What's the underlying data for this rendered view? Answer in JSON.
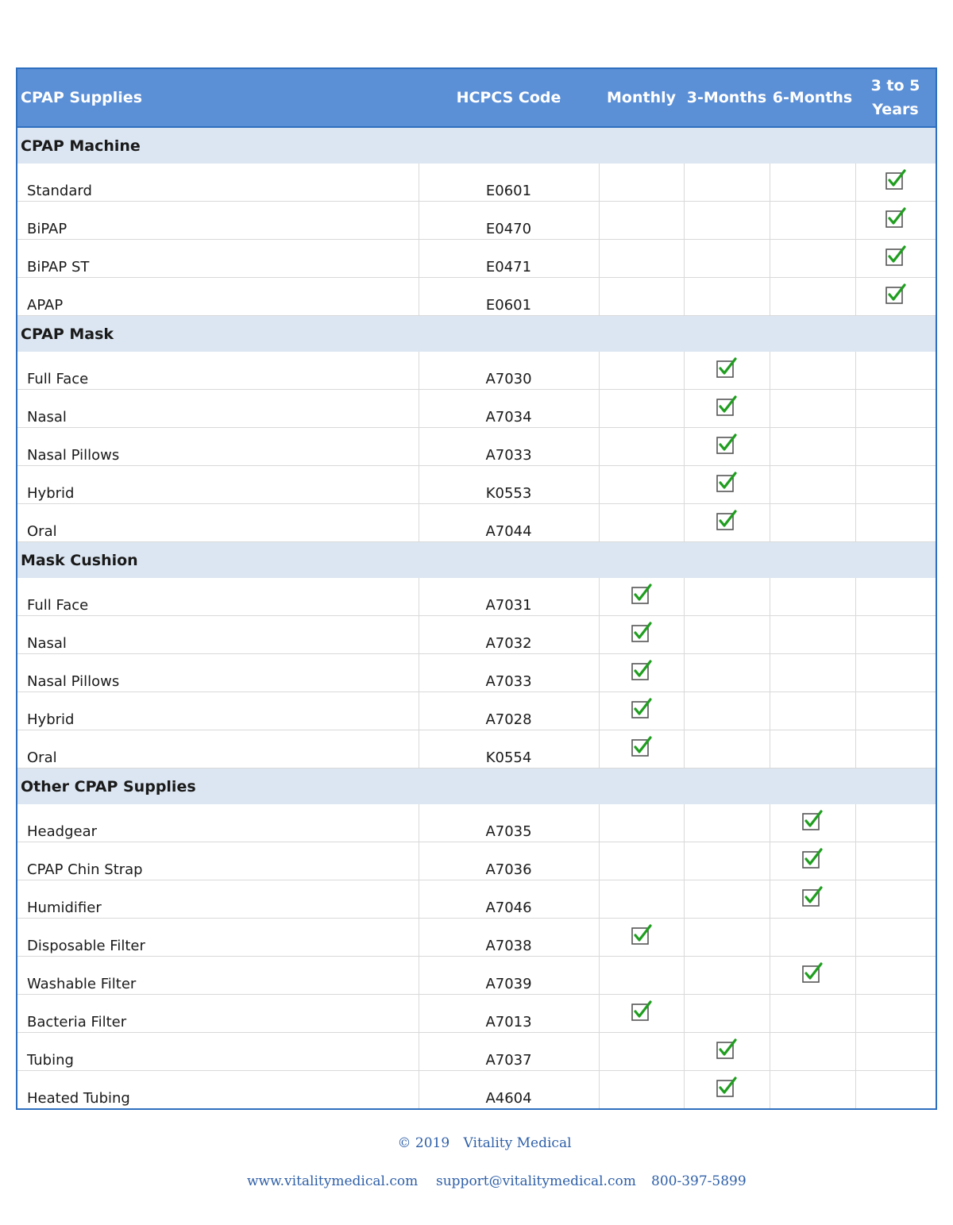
{
  "table": {
    "headers": {
      "supplies": "CPAP Supplies",
      "hcpcs": "HCPCS Code",
      "monthly": "Monthly",
      "three_months": "3-Months",
      "six_months": "6-Months",
      "years_line1": "3 to 5",
      "years_line2": "Years"
    },
    "check_color": "#1f9e1f",
    "sections": [
      {
        "title": "CPAP Machine",
        "rows": [
          {
            "name": "Standard",
            "code": "E0601",
            "freq": "years"
          },
          {
            "name": "BiPAP",
            "code": "E0470",
            "freq": "years"
          },
          {
            "name": "BiPAP ST",
            "code": "E0471",
            "freq": "years"
          },
          {
            "name": "APAP",
            "code": "E0601",
            "freq": "years"
          }
        ]
      },
      {
        "title": "CPAP Mask",
        "rows": [
          {
            "name": "Full Face",
            "code": "A7030",
            "freq": "three_months"
          },
          {
            "name": "Nasal",
            "code": "A7034",
            "freq": "three_months"
          },
          {
            "name": "Nasal Pillows",
            "code": "A7033",
            "freq": "three_months"
          },
          {
            "name": "Hybrid",
            "code": "K0553",
            "freq": "three_months"
          },
          {
            "name": "Oral",
            "code": "A7044",
            "freq": "three_months"
          }
        ]
      },
      {
        "title": "Mask Cushion",
        "rows": [
          {
            "name": "Full Face",
            "code": "A7031",
            "freq": "monthly"
          },
          {
            "name": "Nasal",
            "code": "A7032",
            "freq": "monthly"
          },
          {
            "name": "Nasal Pillows",
            "code": "A7033",
            "freq": "monthly"
          },
          {
            "name": "Hybrid",
            "code": "A7028",
            "freq": "monthly"
          },
          {
            "name": "Oral",
            "code": "K0554",
            "freq": "monthly"
          }
        ]
      },
      {
        "title": "Other CPAP Supplies",
        "rows": [
          {
            "name": "Headgear",
            "code": "A7035",
            "freq": "six_months"
          },
          {
            "name": "CPAP Chin Strap",
            "code": "A7036",
            "freq": "six_months"
          },
          {
            "name": "Humidifier",
            "code": "A7046",
            "freq": "six_months"
          },
          {
            "name": "Disposable Filter",
            "code": "A7038",
            "freq": "monthly"
          },
          {
            "name": "Washable Filter",
            "code": "A7039",
            "freq": "six_months"
          },
          {
            "name": "Bacteria Filter",
            "code": "A7013",
            "freq": "monthly"
          },
          {
            "name": "Tubing",
            "code": "A7037",
            "freq": "three_months"
          },
          {
            "name": "Heated Tubing",
            "code": "A4604",
            "freq": "three_months"
          }
        ]
      }
    ]
  },
  "footer": {
    "copyright": "© 2019",
    "company": "Vitality Medical",
    "website": "www.vitalitymedical.com",
    "email": "support@vitalitymedical.com",
    "phone": "800-397-5899"
  }
}
